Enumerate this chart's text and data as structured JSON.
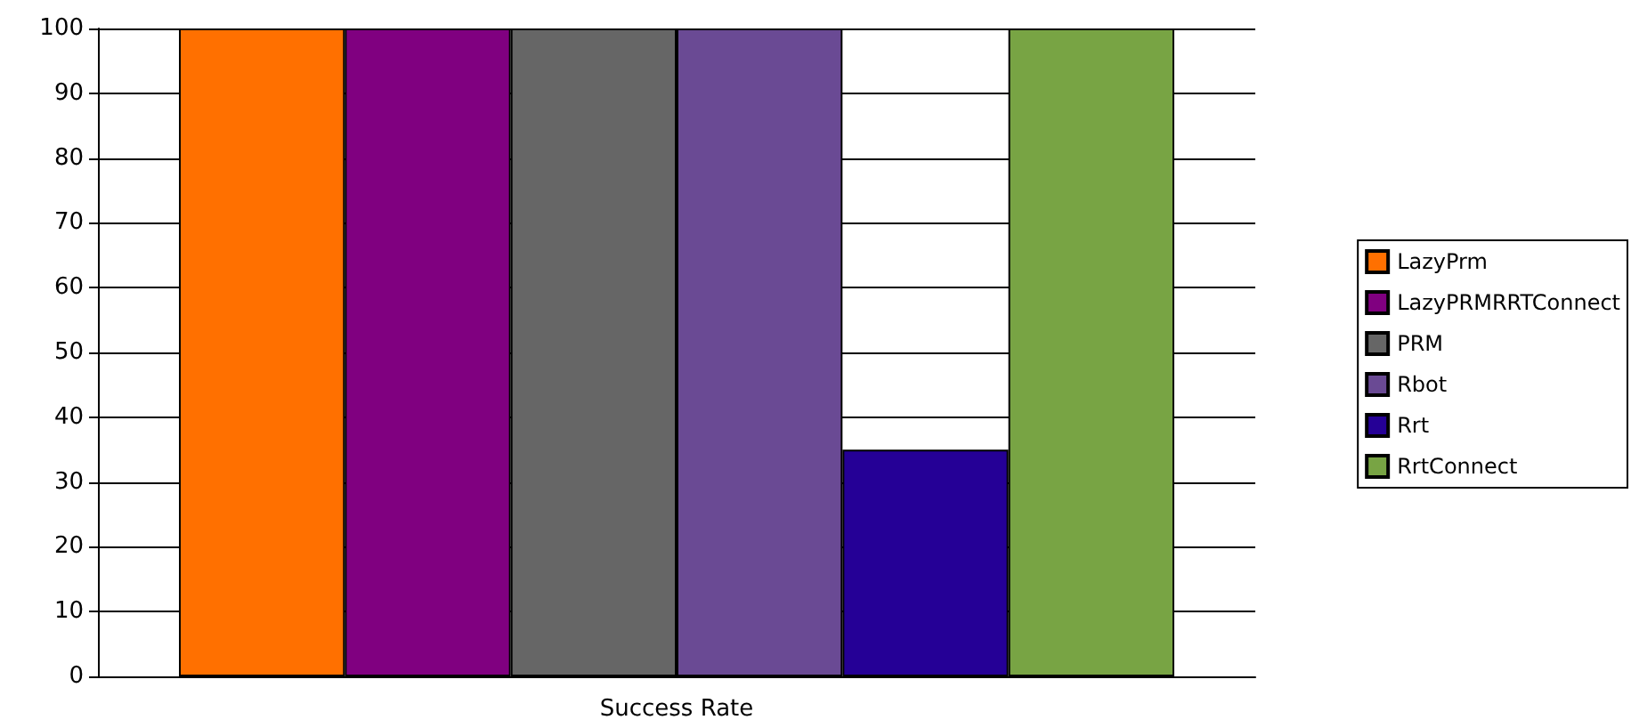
{
  "chart_data": {
    "type": "bar",
    "categories": [
      "Success Rate"
    ],
    "series": [
      {
        "name": "LazyPrm",
        "color": "#ff7000",
        "values": [
          100
        ]
      },
      {
        "name": "LazyPRMRRTConnect",
        "color": "#800080",
        "values": [
          100
        ]
      },
      {
        "name": "PRM",
        "color": "#666666",
        "values": [
          100
        ]
      },
      {
        "name": "Rbot",
        "color": "#6a4a94",
        "values": [
          100
        ]
      },
      {
        "name": "Rrt",
        "color": "#250096",
        "values": [
          35
        ]
      },
      {
        "name": "RrtConnect",
        "color": "#78a444",
        "values": [
          100
        ]
      }
    ],
    "ylim": [
      0,
      100
    ],
    "yticks": [
      0,
      10,
      20,
      30,
      40,
      50,
      60,
      70,
      80,
      90,
      100
    ],
    "grid": "y",
    "legend": "right"
  }
}
